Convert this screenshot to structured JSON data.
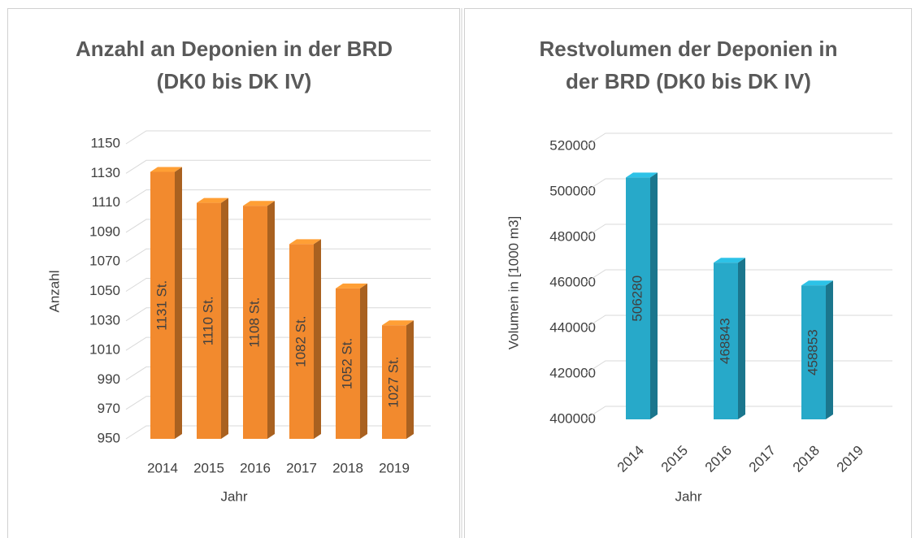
{
  "chart_data": [
    {
      "type": "bar3d",
      "title": [
        "Anzahl an Deponien in der BRD",
        "(DK0 bis DK IV)"
      ],
      "y_label": "Anzahl",
      "x_label": "Jahr",
      "categories": [
        "2014",
        "2015",
        "2016",
        "2017",
        "2018",
        "2019"
      ],
      "values": [
        1131,
        1110,
        1108,
        1082,
        1052,
        1027
      ],
      "value_labels": [
        "1131 St.",
        "1110 St.",
        "1108 St.",
        "1082 St.",
        "1052 St.",
        "1027 St."
      ],
      "color": "#f28a2e",
      "ylim": [
        950,
        1150
      ],
      "yticks": [
        950,
        970,
        990,
        1010,
        1030,
        1050,
        1070,
        1090,
        1110,
        1130,
        1150
      ],
      "grid": true,
      "x_label_rotation": 0
    },
    {
      "type": "bar3d",
      "title": [
        "Restvolumen der Deponien in",
        "der BRD (DK0 bis DK IV)"
      ],
      "y_label": "Volumen in [1000 m3]",
      "x_label": "Jahr",
      "categories": [
        "2014",
        "2015",
        "2016",
        "2017",
        "2018",
        "2019"
      ],
      "values": [
        506280,
        null,
        468843,
        null,
        458853,
        null
      ],
      "color": "#27a9c9",
      "ylim": [
        400000,
        520000
      ],
      "yticks": [
        400000,
        420000,
        440000,
        460000,
        480000,
        500000,
        520000
      ],
      "grid": true,
      "x_label_rotation": -45
    }
  ]
}
